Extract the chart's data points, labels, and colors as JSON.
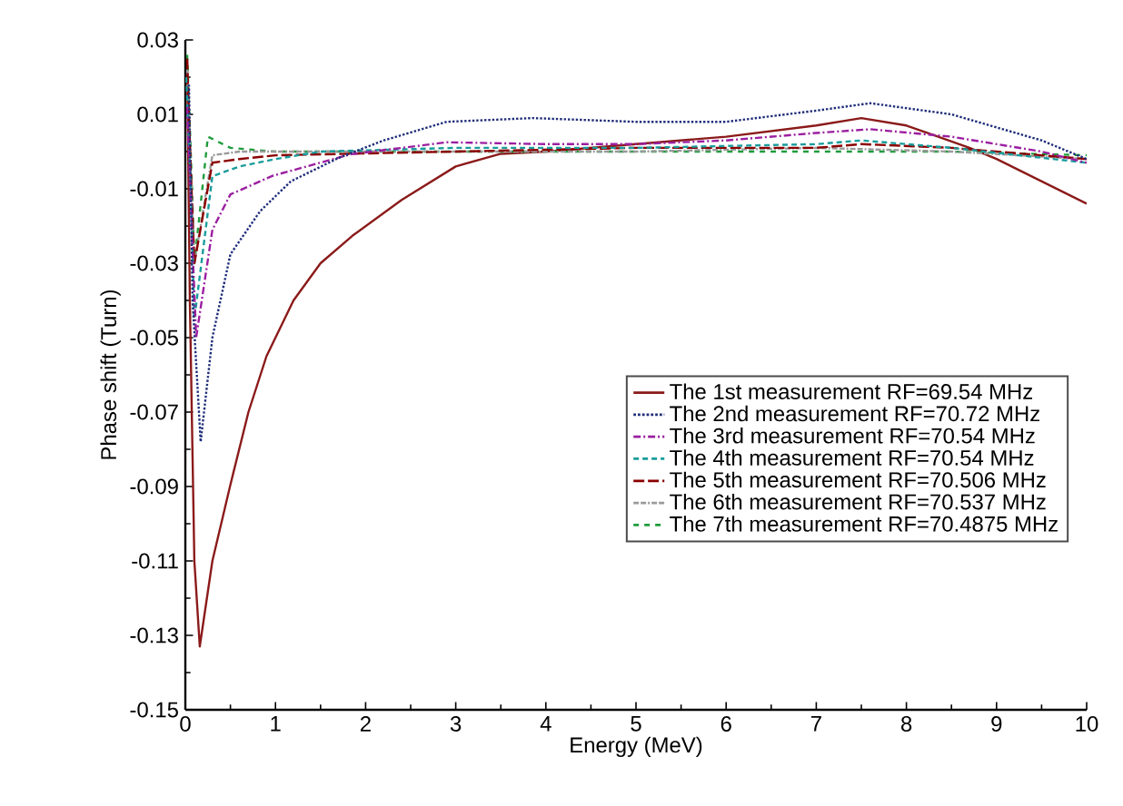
{
  "chart_data": {
    "type": "line",
    "xlabel": "Energy (MeV)",
    "ylabel": "Phase shift (Turn)",
    "xlim": [
      0,
      10
    ],
    "ylim": [
      -0.15,
      0.03
    ],
    "xticks": [
      0,
      1,
      2,
      3,
      4,
      5,
      6,
      7,
      8,
      9,
      10
    ],
    "yticks": [
      -0.15,
      -0.13,
      -0.11,
      -0.09,
      -0.07,
      -0.05,
      -0.03,
      -0.01,
      0.01,
      0.03
    ],
    "grid": false,
    "legend": "right",
    "marker": "none",
    "series": [
      {
        "name": "The 1st measurement RF=69.54 MHz",
        "color": "#8b1a1a",
        "line_style": "solid",
        "x": [
          0.02,
          0.05,
          0.1,
          0.16,
          0.3,
          0.5,
          0.7,
          0.9,
          1.2,
          1.5,
          1.85,
          2.4,
          3.0,
          3.5,
          4.0,
          5.0,
          6.0,
          7.0,
          7.5,
          8.0,
          8.7,
          9.0,
          10.0
        ],
        "values": [
          0.025,
          -0.04,
          -0.11,
          -0.133,
          -0.11,
          -0.0895,
          -0.07,
          -0.055,
          -0.04,
          -0.03,
          -0.0227,
          -0.013,
          -0.004,
          -0.0006,
          0.0,
          0.002,
          0.004,
          0.007,
          0.009,
          0.007,
          0.001,
          -0.002,
          -0.014
        ]
      },
      {
        "name": "The 2nd measurement RF=70.72 MHz",
        "color": "#1f2d7a",
        "line_style": "dotted",
        "x": [
          0.04,
          0.08,
          0.17,
          0.3,
          0.5,
          0.83,
          1.17,
          1.7,
          2.2,
          2.9,
          3.85,
          5.0,
          6.0,
          7.0,
          7.6,
          8.5,
          9.5,
          10.0
        ],
        "values": [
          0.018,
          -0.04,
          -0.078,
          -0.05,
          -0.0276,
          -0.016,
          -0.008,
          -0.0017,
          0.003,
          0.008,
          0.009,
          0.008,
          0.008,
          0.011,
          0.013,
          0.01,
          0.003,
          -0.002
        ]
      },
      {
        "name": "The 3rd measurement RF=70.54 MHz",
        "color": "#9b1fa0",
        "line_style": "dashed",
        "x": [
          0.02,
          0.07,
          0.12,
          0.3,
          0.5,
          0.97,
          1.84,
          2.9,
          4.0,
          5.0,
          6.0,
          7.0,
          7.6,
          8.5,
          9.5,
          10.0
        ],
        "values": [
          0.012,
          -0.02,
          -0.05,
          -0.021,
          -0.0115,
          -0.0065,
          -0.0007,
          0.0025,
          0.002,
          0.002,
          0.003,
          0.005,
          0.006,
          0.004,
          0.0,
          -0.003
        ]
      },
      {
        "name": "The 4th measurement RF=70.54 MHz",
        "color": "#1a9c9c",
        "line_style": "dashed",
        "x": [
          0.01,
          0.06,
          0.1,
          0.3,
          0.6,
          1.0,
          1.5,
          3.0,
          5.0,
          7.0,
          7.5,
          8.5,
          10.0
        ],
        "values": [
          0.02,
          -0.01,
          -0.045,
          -0.0066,
          -0.004,
          -0.002,
          0.0,
          0.001,
          0.001,
          0.002,
          0.003,
          0.001,
          -0.003
        ]
      },
      {
        "name": "The 5th measurement RF=70.506 MHz",
        "color": "#8b0000",
        "line_style": "dashed",
        "x": [
          0.02,
          0.06,
          0.1,
          0.3,
          0.6,
          1.0,
          3.0,
          5.0,
          7.0,
          7.5,
          8.5,
          10.0
        ],
        "values": [
          0.025,
          -0.005,
          -0.03,
          -0.003,
          -0.002,
          -0.001,
          0.0,
          0.001,
          0.001,
          0.002,
          0.001,
          -0.002
        ]
      },
      {
        "name": "The 6th measurement RF=70.537 MHz",
        "color": "#9a9a9a",
        "line_style": "dashed",
        "x": [
          0.02,
          0.06,
          0.1,
          0.3,
          0.6,
          1.0,
          3.0,
          5.0,
          7.0,
          8.5,
          10.0
        ],
        "values": [
          0.022,
          -0.005,
          -0.03,
          -0.001,
          0.0,
          0.0,
          0.0,
          0.0,
          0.001,
          0.0,
          -0.002
        ]
      },
      {
        "name": "The 7th measurement RF=70.4875 MHz",
        "color": "#1f9c3c",
        "line_style": "dashed",
        "x": [
          0.02,
          0.06,
          0.1,
          0.25,
          0.5,
          1.0,
          3.0,
          5.0,
          7.0,
          8.5,
          10.0
        ],
        "values": [
          0.026,
          0.0,
          -0.03,
          0.004,
          0.001,
          0.0,
          0.0,
          0.0,
          0.0,
          0.0,
          -0.001
        ]
      }
    ]
  }
}
